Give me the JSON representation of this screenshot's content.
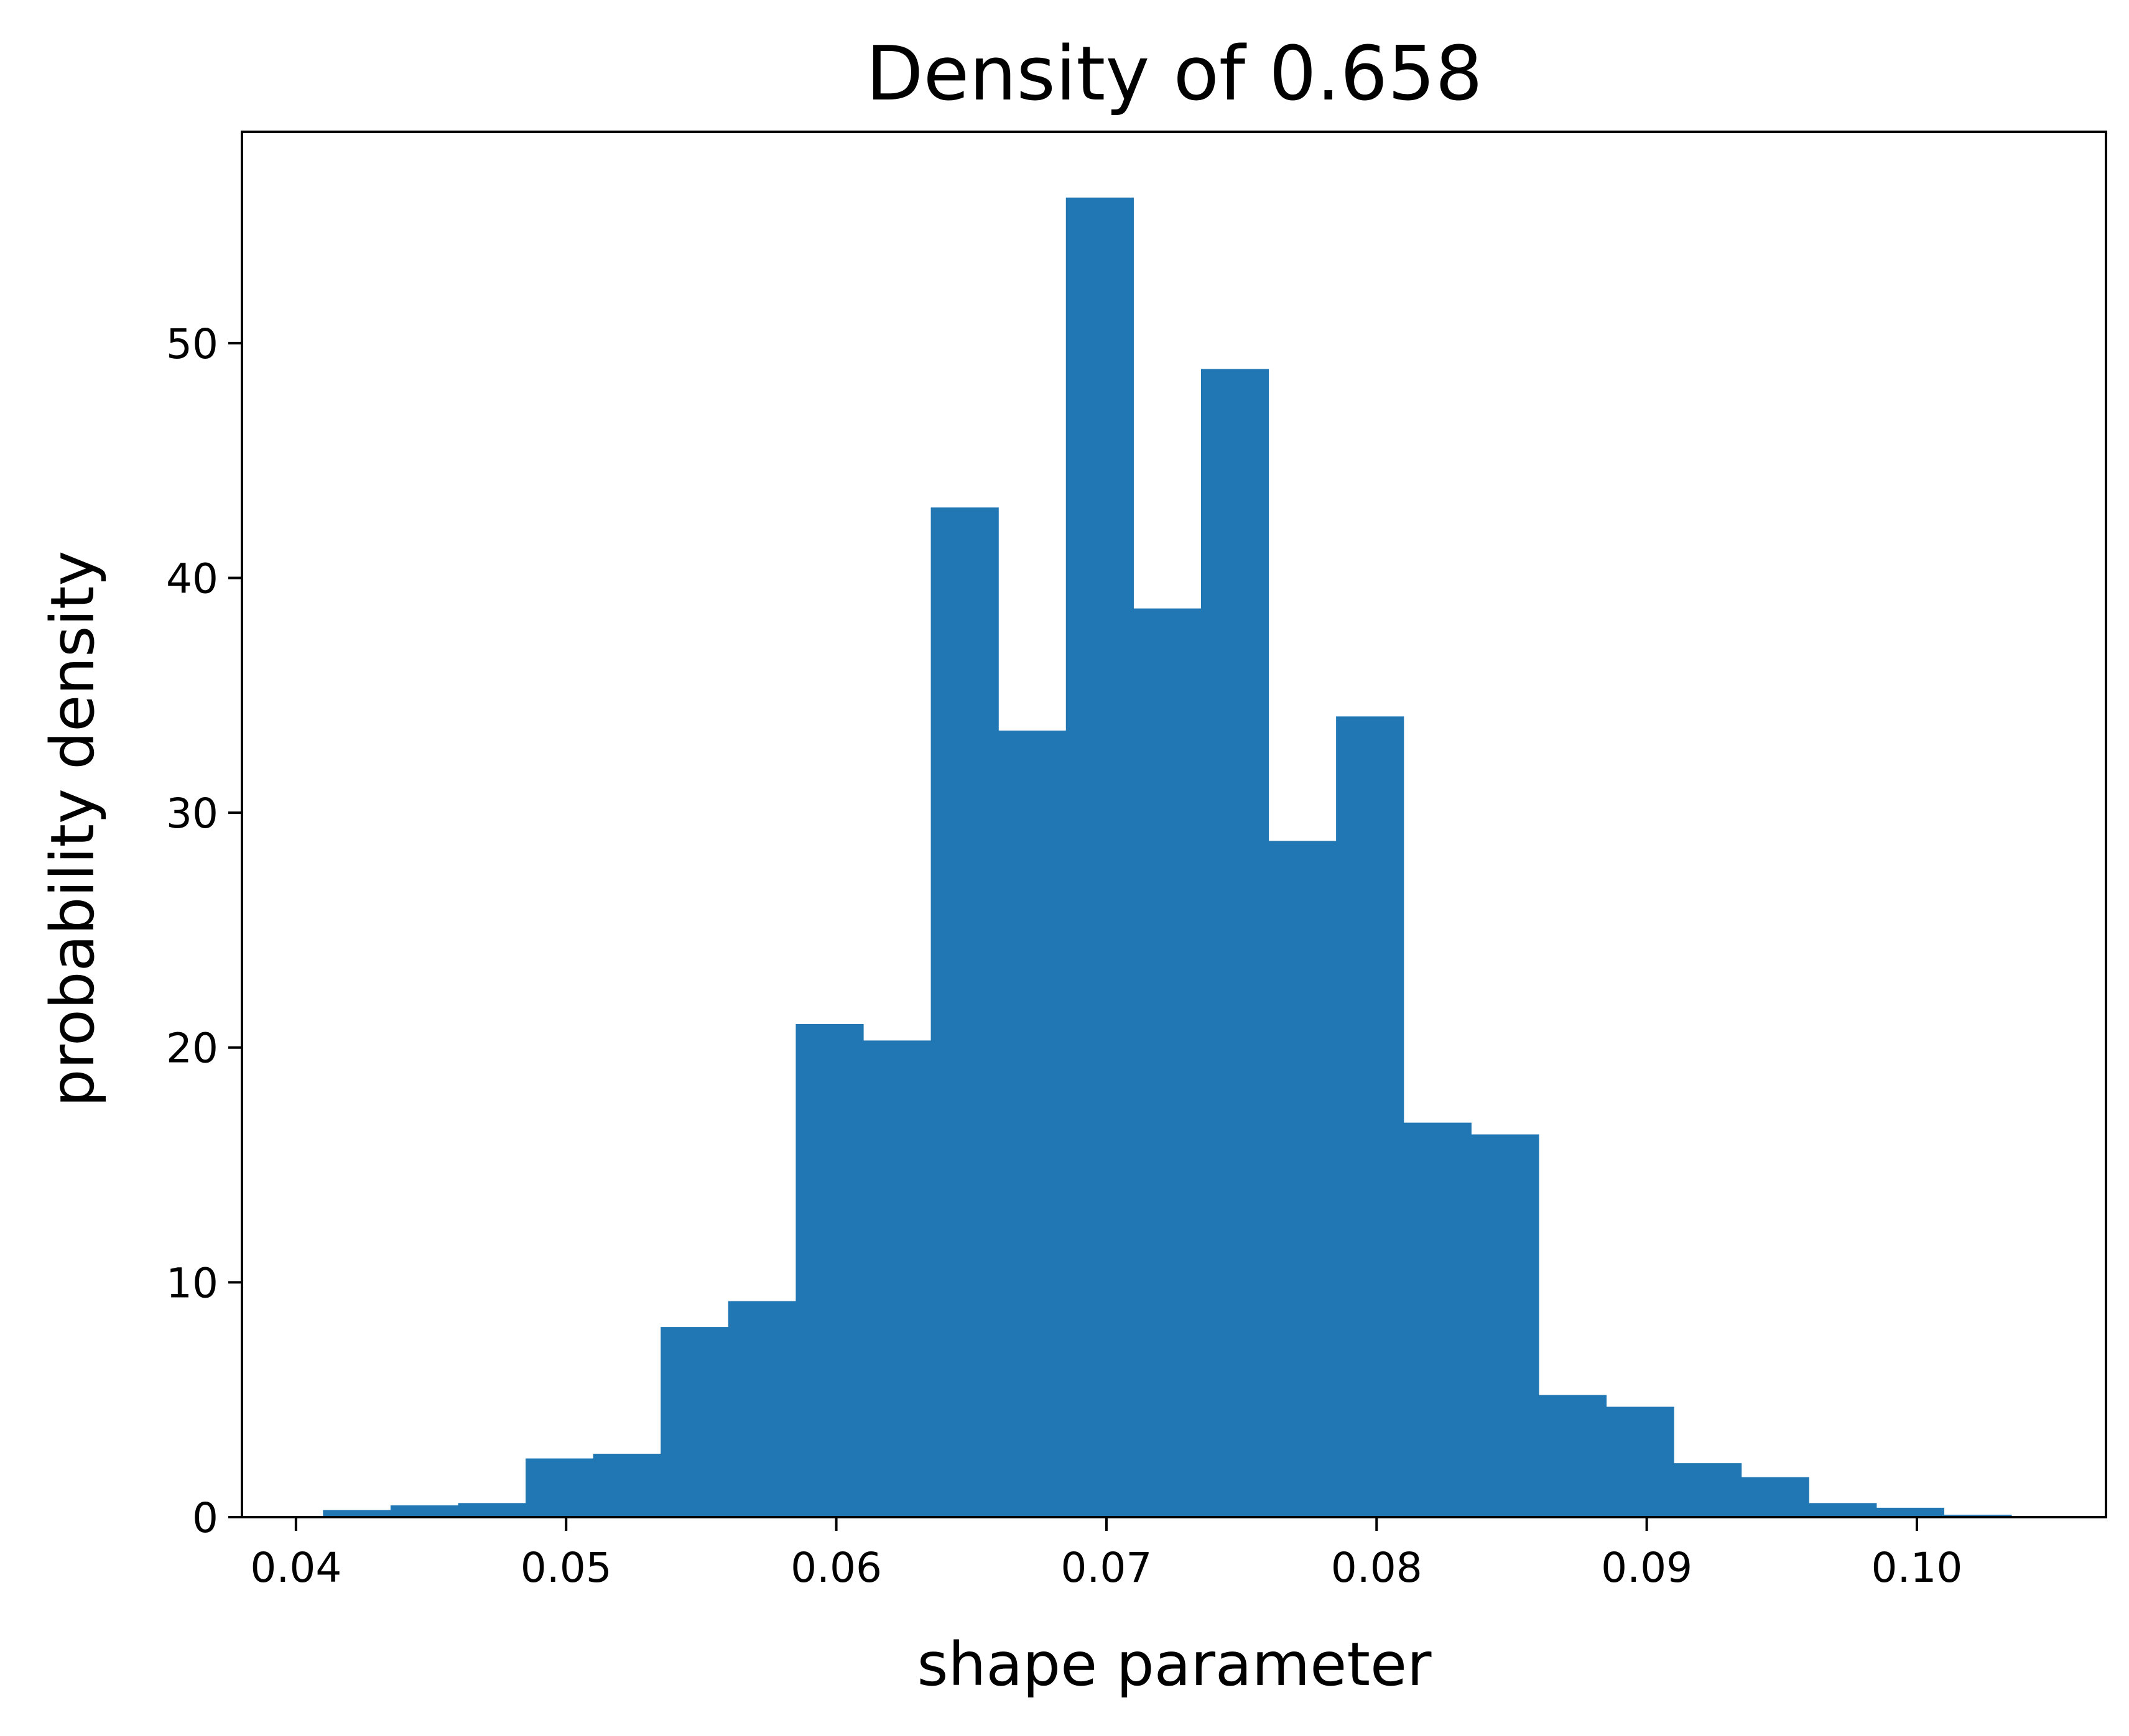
{
  "chart_data": {
    "type": "bar",
    "title": "Density of 0.658",
    "xlabel": "shape parameter",
    "ylabel": "probability density",
    "xlim": [
      0.038,
      0.107
    ],
    "ylim": [
      0,
      59
    ],
    "xticks": [
      0.04,
      0.05,
      0.06,
      0.07,
      0.08,
      0.09,
      0.1
    ],
    "xtick_labels": [
      "0.04",
      "0.05",
      "0.06",
      "0.07",
      "0.08",
      "0.09",
      "0.10"
    ],
    "yticks": [
      0,
      10,
      20,
      30,
      40,
      50
    ],
    "ytick_labels": [
      "0",
      "10",
      "20",
      "30",
      "40",
      "50"
    ],
    "grid": false,
    "bin_edges": [
      0.041,
      0.0435,
      0.046,
      0.0485,
      0.051,
      0.0535,
      0.056,
      0.0585,
      0.061,
      0.0635,
      0.066,
      0.0685,
      0.071,
      0.0735,
      0.076,
      0.0785,
      0.081,
      0.0835,
      0.086,
      0.0885,
      0.091,
      0.0935,
      0.096,
      0.0985,
      0.101,
      0.1035
    ],
    "values": [
      0.3,
      0.5,
      0.6,
      2.5,
      2.7,
      8.1,
      9.2,
      21.0,
      20.3,
      43.0,
      33.5,
      56.2,
      38.7,
      48.9,
      28.8,
      34.1,
      16.8,
      16.3,
      5.2,
      4.7,
      2.3,
      1.7,
      0.6,
      0.4,
      0.1
    ],
    "color": "#2077b4"
  }
}
